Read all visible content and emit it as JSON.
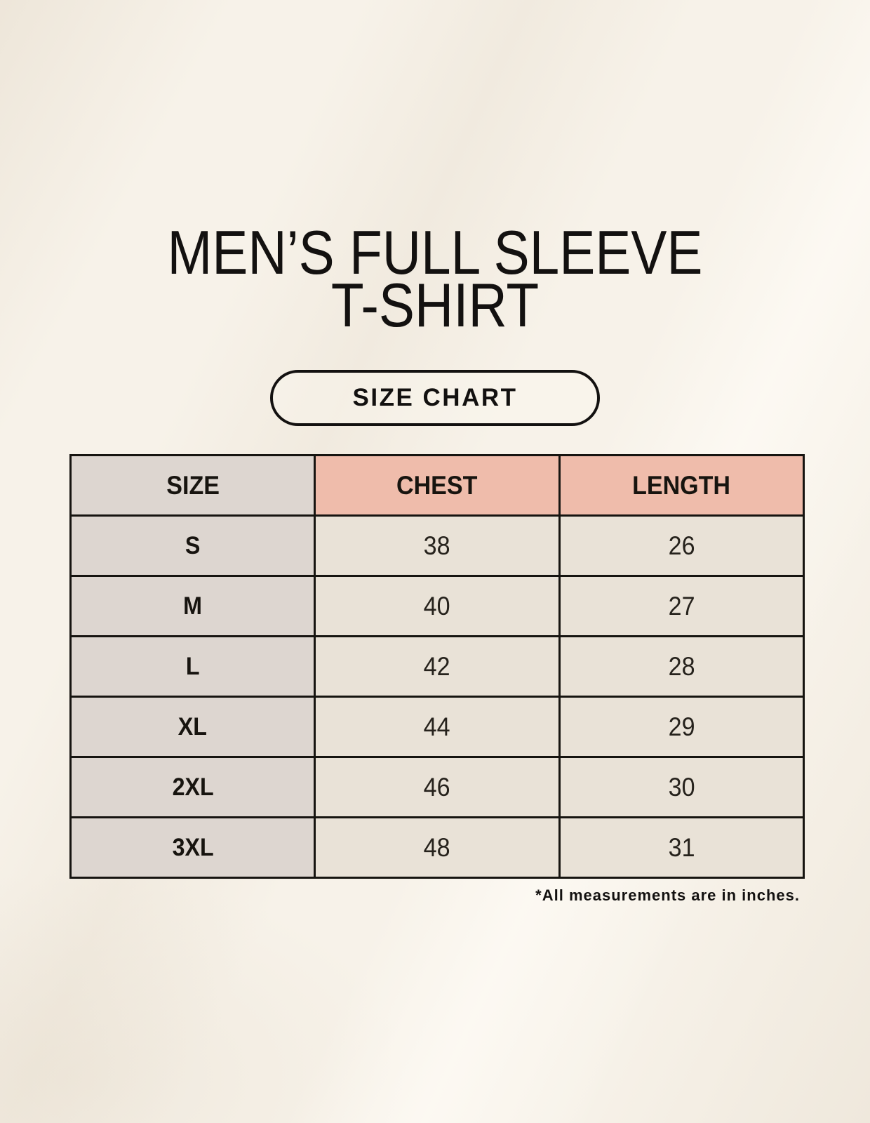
{
  "page": {
    "title_line1": "MEN’S FULL SLEEVE",
    "title_line2": "T-SHIRT",
    "badge_label": "SIZE CHART",
    "footnote": "*All measurements are in inches."
  },
  "colors": {
    "page_background": "#f7f2e9",
    "size_column_bg": "#ddd6d0",
    "header_accent_bg": "#efbcab",
    "value_cell_bg": "#e9e2d7",
    "table_border": "#161410",
    "text": "#131110"
  },
  "size_table": {
    "headers": [
      "SIZE",
      "CHEST",
      "LENGTH"
    ],
    "rows": [
      {
        "size": "S",
        "chest": "38",
        "length": "26"
      },
      {
        "size": "M",
        "chest": "40",
        "length": "27"
      },
      {
        "size": "L",
        "chest": "42",
        "length": "28"
      },
      {
        "size": "XL",
        "chest": "44",
        "length": "29"
      },
      {
        "size": "2XL",
        "chest": "46",
        "length": "30"
      },
      {
        "size": "3XL",
        "chest": "48",
        "length": "31"
      }
    ]
  },
  "chart_data": {
    "type": "table",
    "title": "MEN’S FULL SLEEVE T-SHIRT — SIZE CHART",
    "columns": [
      "SIZE",
      "CHEST",
      "LENGTH"
    ],
    "rows": [
      [
        "S",
        38,
        26
      ],
      [
        "M",
        40,
        27
      ],
      [
        "L",
        42,
        28
      ],
      [
        "XL",
        44,
        29
      ],
      [
        "2XL",
        46,
        30
      ],
      [
        "3XL",
        48,
        31
      ]
    ],
    "note": "*All measurements are in inches."
  }
}
